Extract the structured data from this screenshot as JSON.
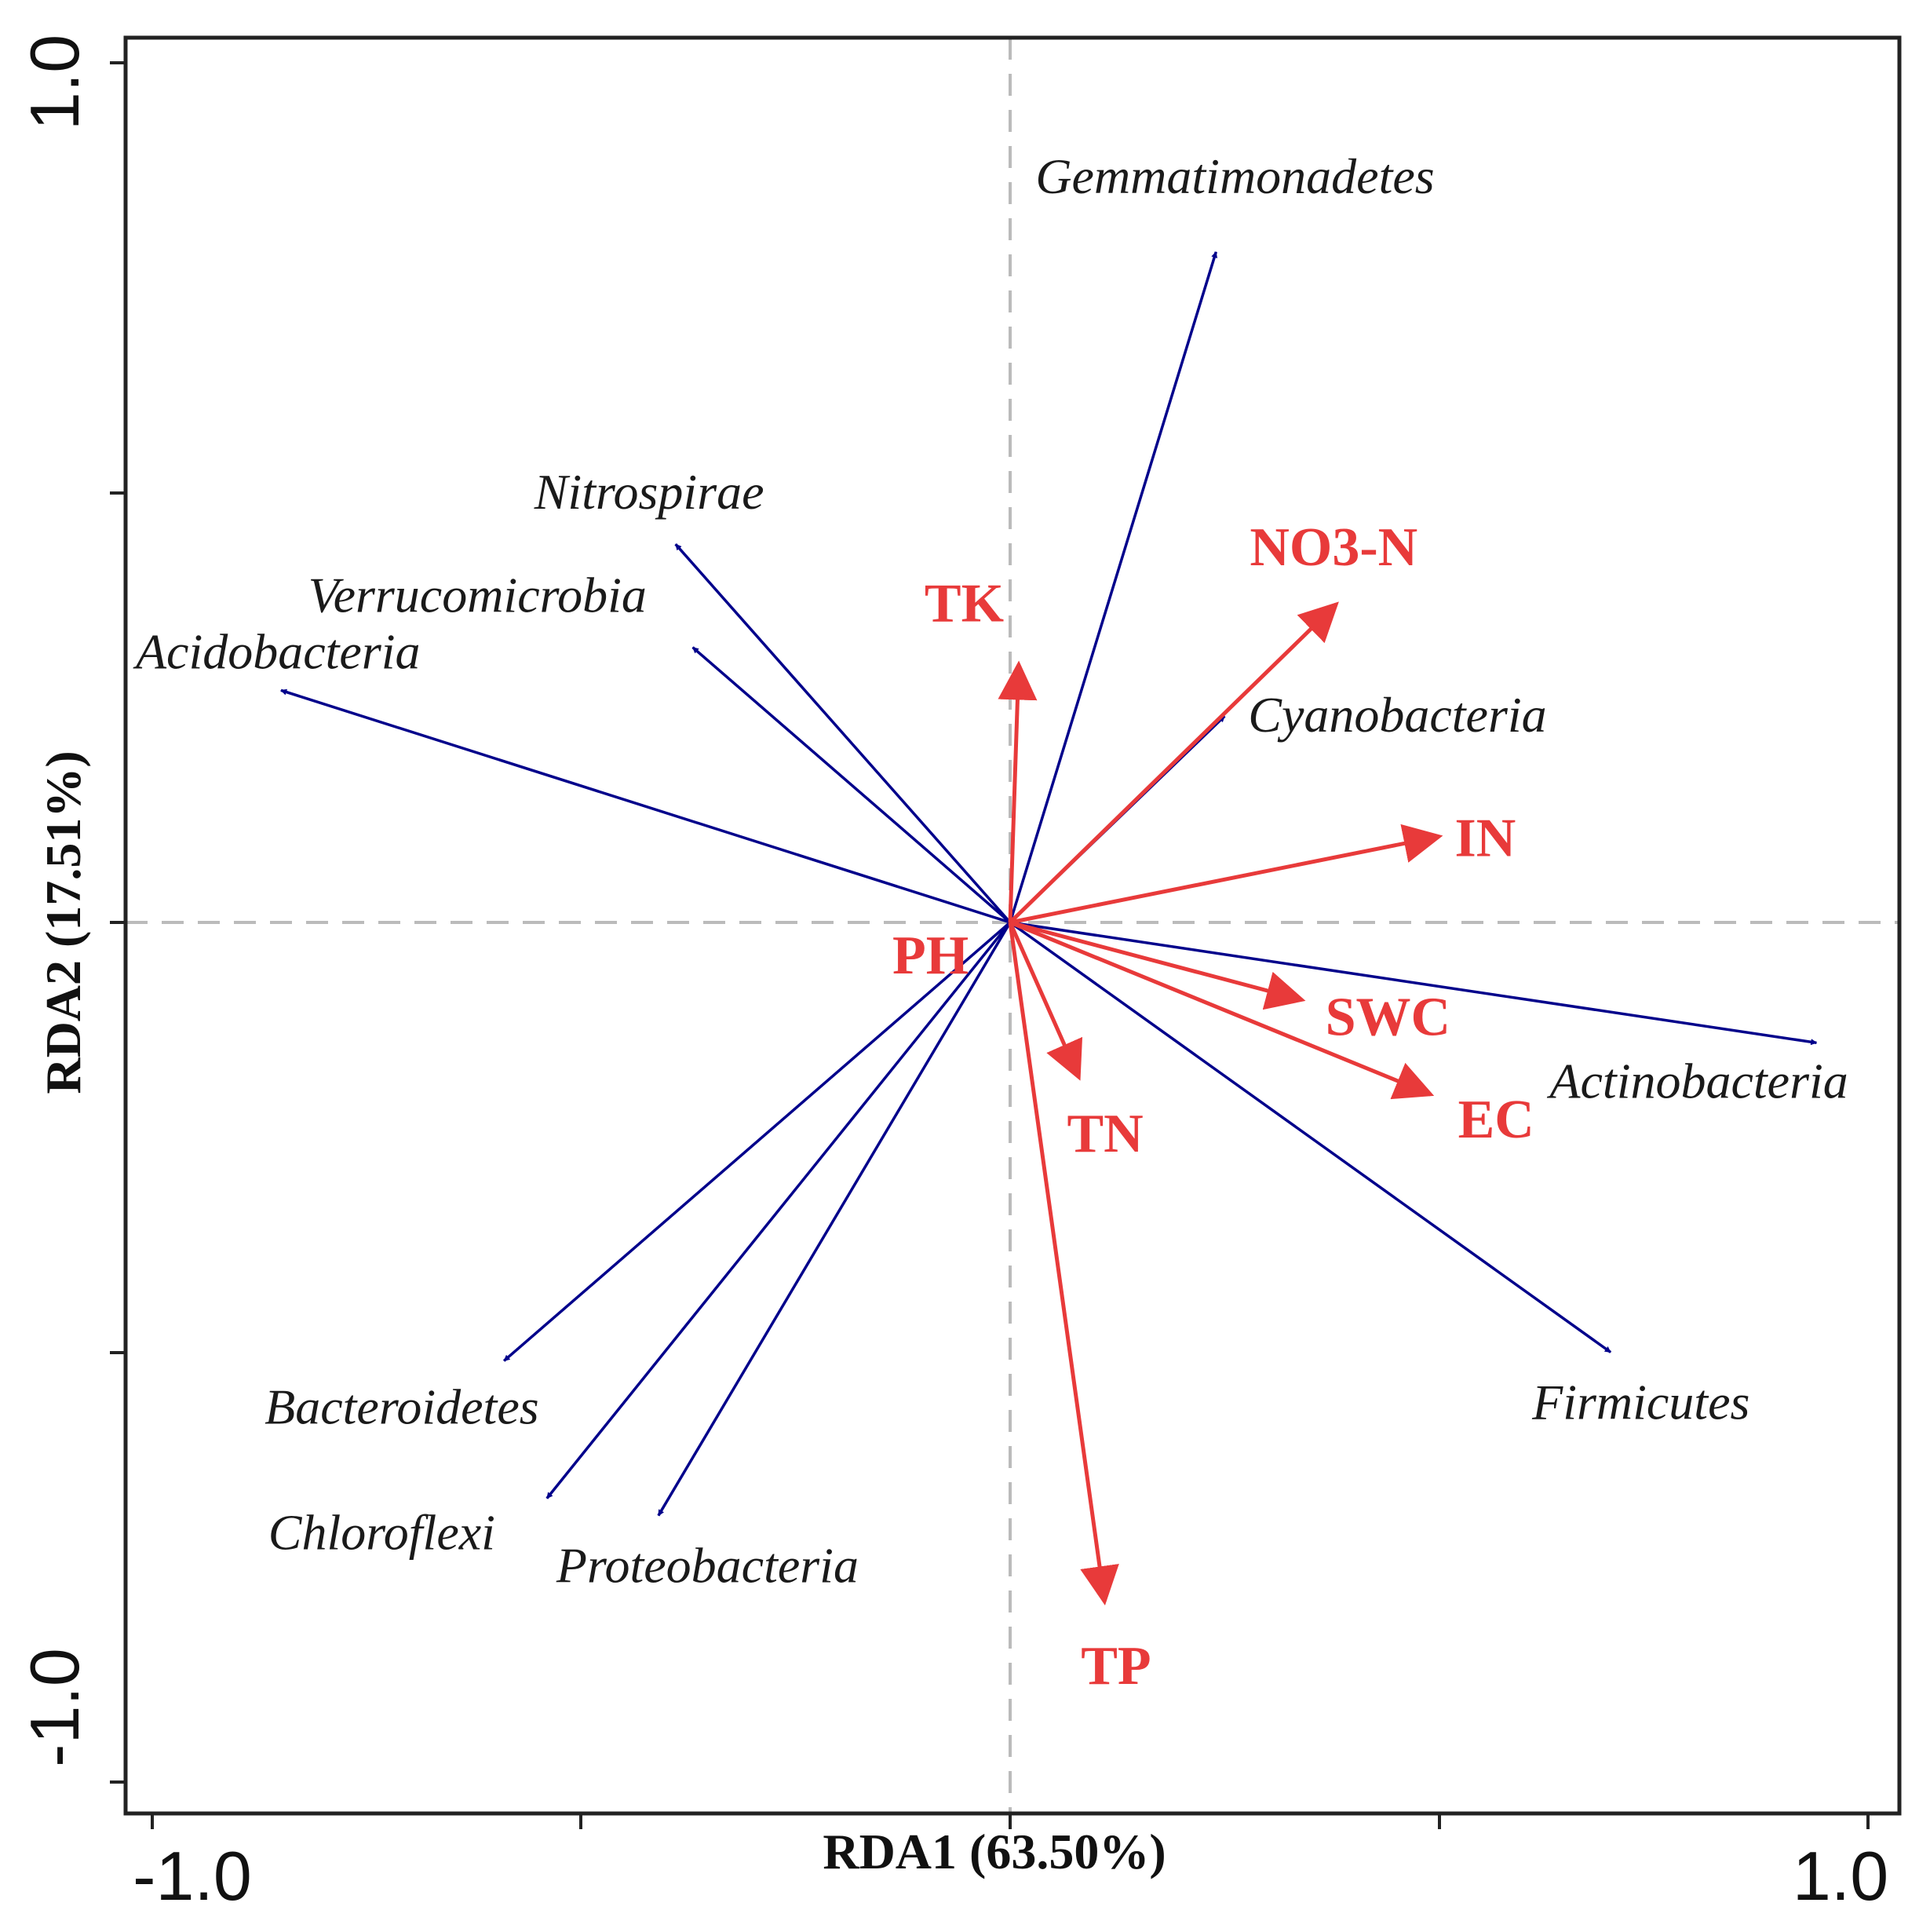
{
  "chart_data": {
    "type": "scatter",
    "subtype": "rda-biplot",
    "title": "",
    "xlabel": "RDA1 (63.50%)",
    "ylabel": "RDA2 (17.51%)",
    "xlim": [
      -1.0,
      1.0
    ],
    "ylim": [
      -1.0,
      1.0
    ],
    "x_tick_labels": [
      "-1.0",
      "1.0"
    ],
    "y_tick_labels": [
      "1.0",
      "-1.0"
    ],
    "reference_lines": {
      "x": 0,
      "y": 0,
      "style": "dashed"
    },
    "colors": {
      "species": "#00008b",
      "environment": "#e83a3a",
      "reference": "#bbbbbb",
      "frame": "#222222"
    },
    "species": [
      {
        "name": "Gemmatimonadetes",
        "x": 0.24,
        "y": 0.78
      },
      {
        "name": "Nitrospirae",
        "x": -0.39,
        "y": 0.44
      },
      {
        "name": "Verrucomicrobia",
        "x": -0.37,
        "y": 0.32
      },
      {
        "name": "Acidobacteria",
        "x": -0.85,
        "y": 0.27
      },
      {
        "name": "Cyanobacteria",
        "x": 0.25,
        "y": 0.24
      },
      {
        "name": "Actinobacteria",
        "x": 0.94,
        "y": -0.14
      },
      {
        "name": "Firmicutes",
        "x": 0.7,
        "y": -0.5
      },
      {
        "name": "Bacteroidetes",
        "x": -0.59,
        "y": -0.51
      },
      {
        "name": "Chloroflexi",
        "x": -0.54,
        "y": -0.67
      },
      {
        "name": "Proteobacteria",
        "x": -0.41,
        "y": -0.69
      }
    ],
    "environment": [
      {
        "name": "NO3-N",
        "x": 0.38,
        "y": 0.37
      },
      {
        "name": "TK",
        "x": 0.01,
        "y": 0.3
      },
      {
        "name": "IN",
        "x": 0.5,
        "y": 0.1
      },
      {
        "name": "SWC",
        "x": 0.34,
        "y": -0.09
      },
      {
        "name": "EC",
        "x": 0.49,
        "y": -0.2
      },
      {
        "name": "TN",
        "x": 0.08,
        "y": -0.18
      },
      {
        "name": "TP",
        "x": 0.11,
        "y": -0.79
      },
      {
        "name": "PH",
        "x": 0.0,
        "y": 0.0
      }
    ]
  }
}
